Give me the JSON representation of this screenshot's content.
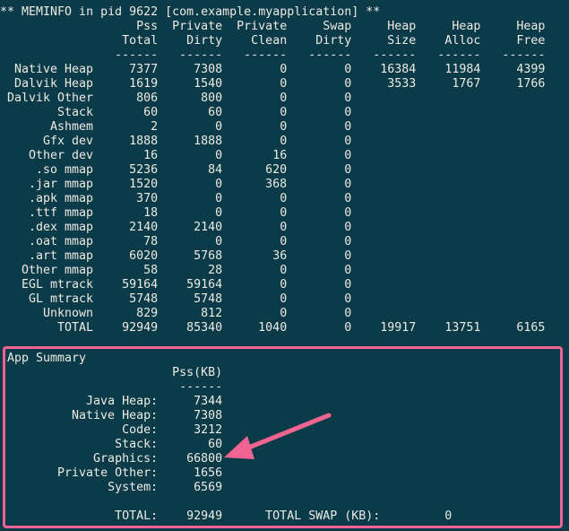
{
  "title": "** MEMINFO in pid 9622 [com.example.myapplication] **",
  "table": {
    "header_top": [
      "",
      "Pss",
      "Private",
      "Private",
      "Swap",
      "Heap",
      "Heap",
      "Heap"
    ],
    "header_bottom": [
      "",
      "Total",
      "Dirty",
      "Clean",
      "Dirty",
      "Size",
      "Alloc",
      "Free"
    ],
    "separator": "------",
    "rows": [
      [
        "Native Heap",
        "7377",
        "7308",
        "0",
        "0",
        "16384",
        "11984",
        "4399"
      ],
      [
        "Dalvik Heap",
        "1619",
        "1540",
        "0",
        "0",
        "3533",
        "1767",
        "1766"
      ],
      [
        "Dalvik Other",
        "806",
        "800",
        "0",
        "0",
        "",
        "",
        ""
      ],
      [
        "Stack",
        "60",
        "60",
        "0",
        "0",
        "",
        "",
        ""
      ],
      [
        "Ashmem",
        "2",
        "0",
        "0",
        "0",
        "",
        "",
        ""
      ],
      [
        "Gfx dev",
        "1888",
        "1888",
        "0",
        "0",
        "",
        "",
        ""
      ],
      [
        "Other dev",
        "16",
        "0",
        "16",
        "0",
        "",
        "",
        ""
      ],
      [
        ".so mmap",
        "5236",
        "84",
        "620",
        "0",
        "",
        "",
        ""
      ],
      [
        ".jar mmap",
        "1520",
        "0",
        "368",
        "0",
        "",
        "",
        ""
      ],
      [
        ".apk mmap",
        "370",
        "0",
        "0",
        "0",
        "",
        "",
        ""
      ],
      [
        ".ttf mmap",
        "18",
        "0",
        "0",
        "0",
        "",
        "",
        ""
      ],
      [
        ".dex mmap",
        "2140",
        "2140",
        "0",
        "0",
        "",
        "",
        ""
      ],
      [
        ".oat mmap",
        "78",
        "0",
        "0",
        "0",
        "",
        "",
        ""
      ],
      [
        ".art mmap",
        "6020",
        "5768",
        "36",
        "0",
        "",
        "",
        ""
      ],
      [
        "Other mmap",
        "58",
        "28",
        "0",
        "0",
        "",
        "",
        ""
      ],
      [
        "EGL mtrack",
        "59164",
        "59164",
        "0",
        "0",
        "",
        "",
        ""
      ],
      [
        "GL mtrack",
        "5748",
        "5748",
        "0",
        "0",
        "",
        "",
        ""
      ],
      [
        "Unknown",
        "829",
        "812",
        "0",
        "0",
        "",
        "",
        ""
      ],
      [
        "TOTAL",
        "92949",
        "85340",
        "1040",
        "0",
        "19917",
        "13751",
        "6165"
      ]
    ]
  },
  "summary": {
    "title": "App Summary",
    "column_header": "Pss(KB)",
    "separator": "------",
    "rows": [
      [
        "Java Heap:",
        "7344"
      ],
      [
        "Native Heap:",
        "7308"
      ],
      [
        "Code:",
        "3212"
      ],
      [
        "Stack:",
        "60"
      ],
      [
        "Graphics:",
        "66800"
      ],
      [
        "Private Other:",
        "1656"
      ],
      [
        "System:",
        "6569"
      ]
    ],
    "total_label": "TOTAL:",
    "total_value": "92949",
    "total_swap_label": "TOTAL SWAP (KB):",
    "total_swap_value": "0"
  },
  "colors": {
    "background": "#0b3a48",
    "text": "#ecebe4",
    "highlight": "#ef6490"
  },
  "annotation": {
    "type": "arrow",
    "points_to": "Graphics"
  }
}
